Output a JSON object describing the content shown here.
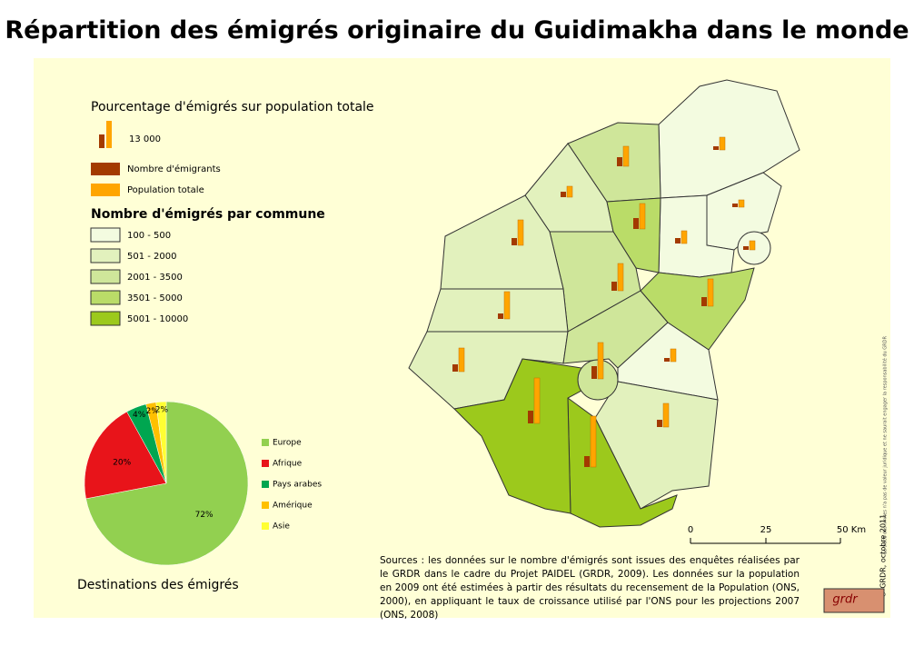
{
  "title": "Répartition des émigrés originaire du Guidimakha dans le monde",
  "legend": {
    "title": "Pourcentage d'émigrés sur population totale",
    "scale_label": "13 000",
    "items": [
      {
        "label": "Nombre d'émigrants",
        "color": "#a33a00"
      },
      {
        "label": "Population totale",
        "color": "#ffa500"
      }
    ]
  },
  "classes": {
    "title": "Nombre d'émigrés par commune",
    "items": [
      {
        "label": "100 - 500",
        "color": "#f3fbe0"
      },
      {
        "label": "501 - 2000",
        "color": "#e2f1bd"
      },
      {
        "label": "2001 - 3500",
        "color": "#cfe69a"
      },
      {
        "label": "3501 - 5000",
        "color": "#badc68"
      },
      {
        "label": "5001 - 10000",
        "color": "#9cc91c"
      }
    ]
  },
  "chart_data": {
    "type": "pie",
    "title": "Destinations des émigrés",
    "categories": [
      "Europe",
      "Afrique",
      "Pays arabes",
      "Amérique",
      "Asie"
    ],
    "values": [
      72,
      20,
      4,
      2,
      2
    ],
    "value_labels": [
      "72%",
      "20%",
      "4%",
      "2%",
      "2%"
    ],
    "colors": [
      "#92d050",
      "#e8141a",
      "#00a650",
      "#ffc000",
      "#ffff33"
    ]
  },
  "scale_bar": {
    "labels": [
      "0",
      "25",
      "50 Km"
    ]
  },
  "sources": "Sources : les données sur le nombre d'émigrés sont issues des enquêtes réalisées par le GRDR dans le cadre du Projet PAIDEL (GRDR, 2009). Les données sur la population en 2009 ont été estimées à partir des résultats du recensement de la Population (ONS, 2000), en appliquant le taux de croissance utilisé par l'ONS pour les projections 2007 (ONS, 2008)",
  "side_note": "Le tracé des limites n'a pas de valeur juridique et ne saurait engager la responsabilité du GRDR",
  "credit": "© GRDR, octobre 2011",
  "logo": "grdr"
}
